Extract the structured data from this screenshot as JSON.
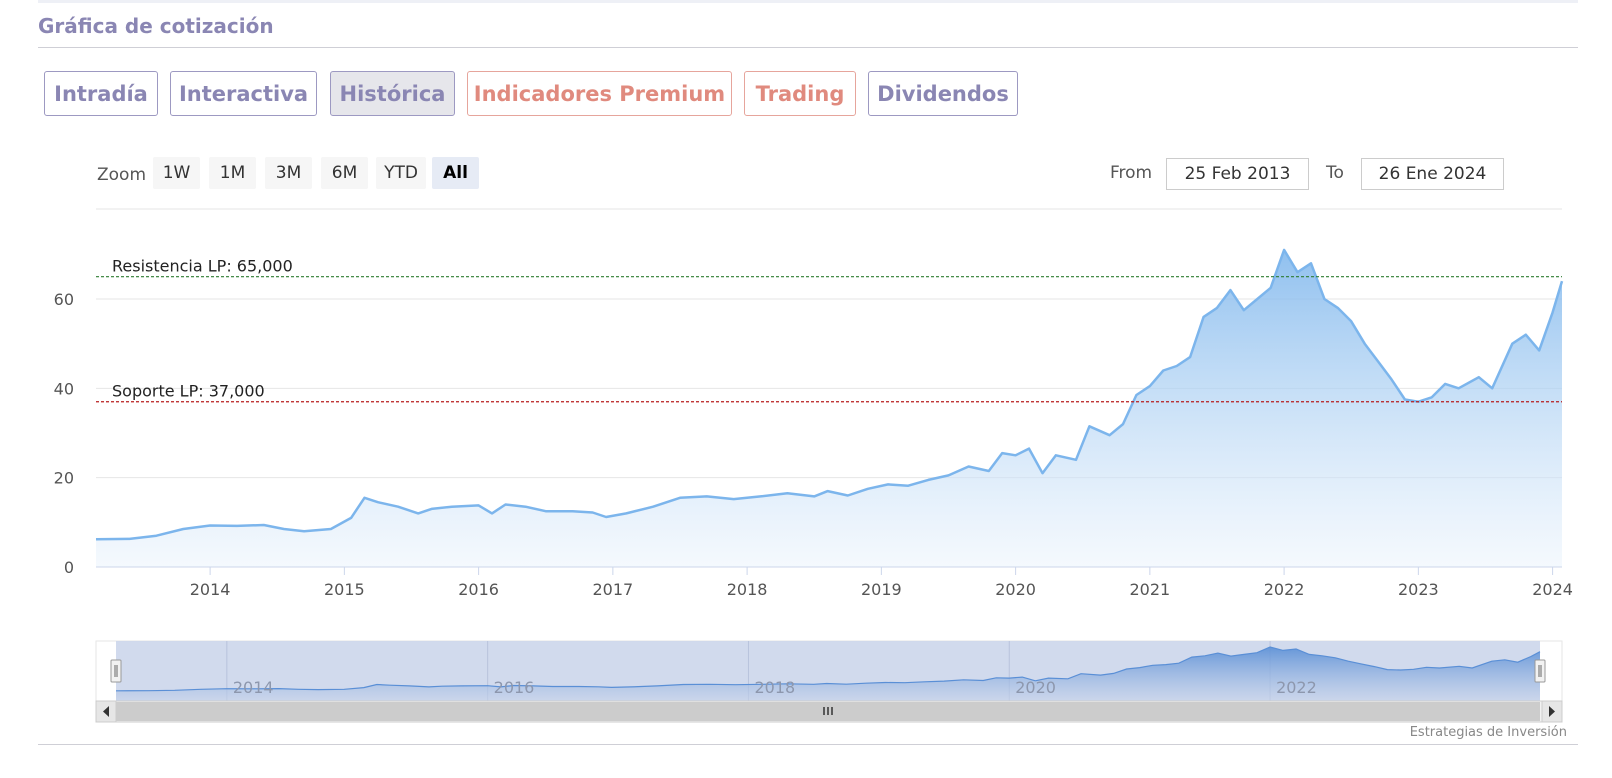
{
  "section": {
    "title": "Gráfica de cotización"
  },
  "tabs": [
    {
      "label": "Intradía",
      "active": false,
      "premium": false
    },
    {
      "label": "Interactiva",
      "active": false,
      "premium": false
    },
    {
      "label": "Histórica",
      "active": true,
      "premium": false
    },
    {
      "label": "Indicadores Premium",
      "active": false,
      "premium": true
    },
    {
      "label": "Trading",
      "active": false,
      "premium": true
    },
    {
      "label": "Dividendos",
      "active": false,
      "premium": false
    }
  ],
  "zoom": {
    "label": "Zoom",
    "buttons": [
      "1W",
      "1M",
      "3M",
      "6M",
      "YTD",
      "All"
    ],
    "selected": "All"
  },
  "range": {
    "from_label": "From",
    "from_value": "25 Feb 2013",
    "to_label": "To",
    "to_value": "26 Ene 2024"
  },
  "credit": "Estrategias de Inversión",
  "chart_data": {
    "type": "area",
    "xlabel": "",
    "ylabel": "",
    "xlim": [
      2013.15,
      2024.07
    ],
    "ylim": [
      0,
      70
    ],
    "yticks": [
      0,
      20,
      40,
      60
    ],
    "xticks": [
      "2014",
      "2015",
      "2016",
      "2017",
      "2018",
      "2019",
      "2020",
      "2021",
      "2022",
      "2023",
      "2024"
    ],
    "series": [
      {
        "x": [
          2013.15,
          2013.4,
          2013.6,
          2013.8,
          2014.0,
          2014.2,
          2014.4,
          2014.55,
          2014.7,
          2014.9,
          2015.05,
          2015.15,
          2015.25,
          2015.4,
          2015.55,
          2015.65,
          2015.8,
          2016.0,
          2016.1,
          2016.2,
          2016.35,
          2016.5,
          2016.7,
          2016.85,
          2016.95,
          2017.1,
          2017.3,
          2017.5,
          2017.7,
          2017.9,
          2018.1,
          2018.3,
          2018.5,
          2018.6,
          2018.75,
          2018.9,
          2019.05,
          2019.2,
          2019.35,
          2019.5,
          2019.65,
          2019.8,
          2019.9,
          2020.0,
          2020.1,
          2020.2,
          2020.3,
          2020.45,
          2020.55,
          2020.7,
          2020.8,
          2020.9,
          2021.0,
          2021.1,
          2021.2,
          2021.3,
          2021.4,
          2021.5,
          2021.6,
          2021.7,
          2021.8,
          2021.9,
          2022.0,
          2022.1,
          2022.2,
          2022.3,
          2022.4,
          2022.5,
          2022.6,
          2022.7,
          2022.8,
          2022.9,
          2023.0,
          2023.1,
          2023.2,
          2023.3,
          2023.45,
          2023.55,
          2023.7,
          2023.8,
          2023.9,
          2024.0,
          2024.07
        ],
        "values": [
          6.2,
          6.3,
          7,
          8.5,
          9.3,
          9.2,
          9.4,
          8.5,
          8,
          8.5,
          11,
          15.5,
          14.5,
          13.5,
          12,
          13,
          13.5,
          13.8,
          12,
          14,
          13.5,
          12.5,
          12.5,
          12.2,
          11.2,
          12,
          13.5,
          15.5,
          15.8,
          15.2,
          15.8,
          16.5,
          15.8,
          17,
          16,
          17.5,
          18.5,
          18.2,
          19.5,
          20.5,
          22.5,
          21.5,
          25.5,
          25,
          26.5,
          21,
          25,
          24,
          31.5,
          29.5,
          32,
          38.5,
          40.5,
          44,
          45,
          47,
          56,
          58,
          62,
          57.5,
          60,
          62.5,
          71,
          66,
          68,
          60,
          58,
          55,
          50,
          46,
          42,
          37.5,
          37,
          38,
          41,
          40,
          42.5,
          40,
          50,
          52,
          48.5,
          57,
          64
        ]
      }
    ],
    "annotations": [
      {
        "label": "Resistencia LP: 65,000",
        "value": 65,
        "color": "#2e7d32"
      },
      {
        "label": "Soporte LP: 37,000",
        "value": 37,
        "color": "#b71c1c"
      }
    ],
    "navigator": {
      "ticks": [
        "2014",
        "2016",
        "2018",
        "2020",
        "2022"
      ]
    },
    "grid": true,
    "legend": "none",
    "colors": {
      "line": "#7cb5ec",
      "fill_top": "#7cb5ec",
      "fill_bottom": "#eaf3fc"
    }
  }
}
